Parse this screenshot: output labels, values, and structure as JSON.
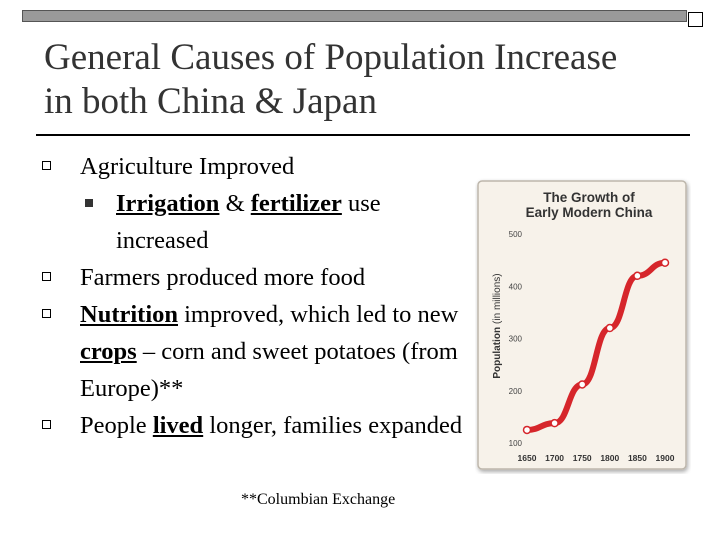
{
  "slide": {
    "title_line1": "General Causes of Population Increase",
    "title_line2": "in both China & Japan",
    "bullet1": "Agriculture Improved",
    "sub1_term1": "Irrigation",
    "sub1_amp": " & ",
    "sub1_term2": "fertilizer",
    "sub1_rest": " use increased",
    "bullet2": "Farmers produced more food",
    "bullet3_term": "Nutrition",
    "bullet3_text1": " improved, which led to new ",
    "bullet3_term2": "crops",
    "bullet3_text2": " – corn and sweet potatoes (from Europe)**",
    "bullet4_text1": "People ",
    "bullet4_term": "lived",
    "bullet4_text2": " longer, families expanded",
    "footnote": "**Columbian Exchange"
  },
  "chart_data": {
    "type": "line",
    "title": "The Growth of Early Modern China",
    "title_line1": "The Growth of",
    "title_line2": "Early Modern China",
    "ylabel": "Population",
    "ylabel_unit": "(in millions)",
    "x": [
      1650,
      1700,
      1750,
      1800,
      1850,
      1900
    ],
    "x_tick_labels": [
      "1650",
      "1700",
      "1750",
      "1800",
      "1850",
      "1900"
    ],
    "y_ticks": [
      100,
      200,
      300,
      400,
      500
    ],
    "y_tick_labels": [
      "100",
      "200",
      "300",
      "400",
      "500"
    ],
    "ylim": [
      100,
      500
    ],
    "xlim": [
      1650,
      1900
    ],
    "series": [
      {
        "x": [
          1650,
          1700,
          1750,
          1800,
          1850,
          1900
        ],
        "values": [
          125,
          138,
          212,
          320,
          420,
          445
        ],
        "color": "#d6262b"
      }
    ]
  }
}
